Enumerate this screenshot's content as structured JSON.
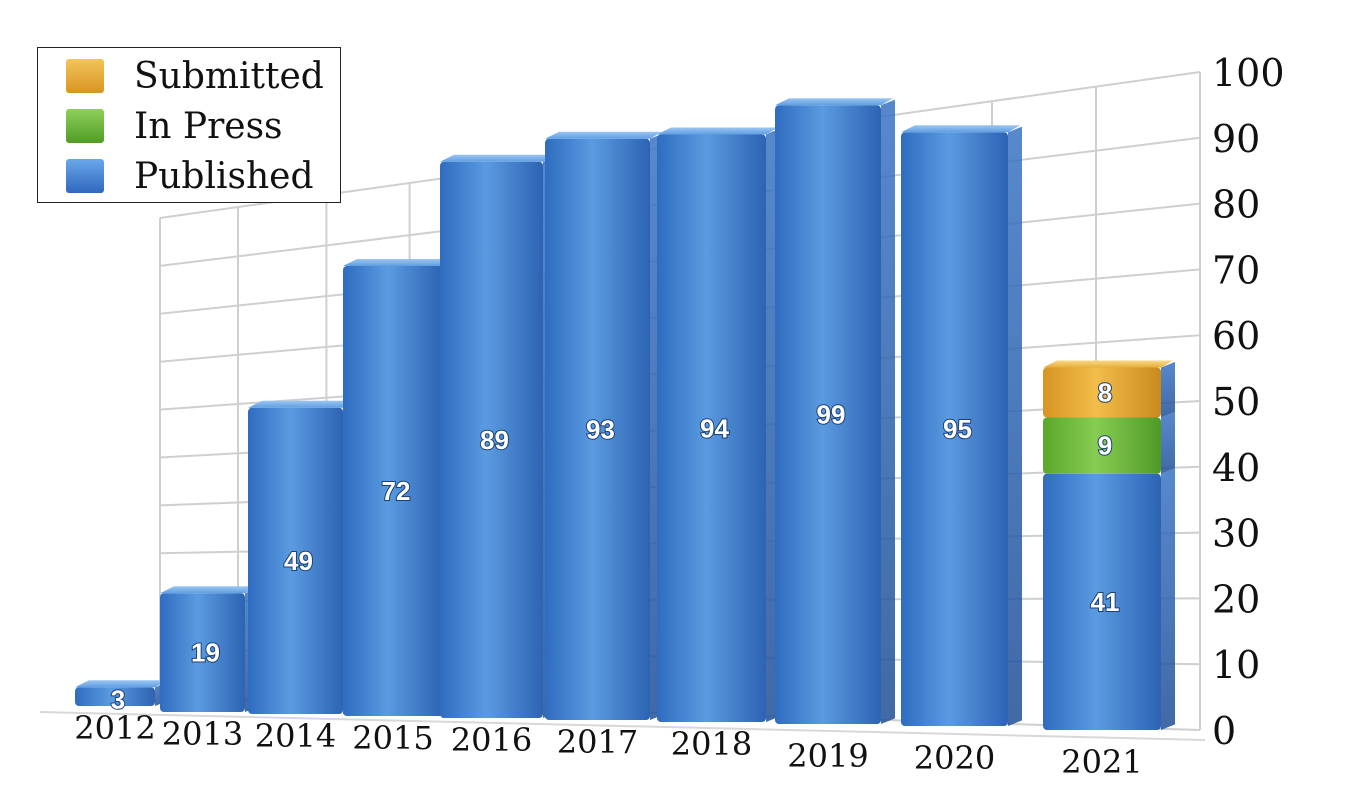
{
  "chart_data": {
    "type": "bar",
    "stacked": true,
    "categories": [
      "2012",
      "2013",
      "2014",
      "2015",
      "2016",
      "2017",
      "2018",
      "2019",
      "2020",
      "2021"
    ],
    "series": [
      {
        "name": "Published",
        "values": [
          3,
          19,
          49,
          72,
          89,
          93,
          94,
          99,
          95,
          41
        ],
        "color": "#3e7fd0"
      },
      {
        "name": "In Press",
        "values": [
          0,
          0,
          0,
          0,
          0,
          0,
          0,
          0,
          0,
          9
        ],
        "color": "#6fba3a"
      },
      {
        "name": "Submitted",
        "values": [
          0,
          0,
          0,
          0,
          0,
          0,
          0,
          0,
          0,
          8
        ],
        "color": "#e6a92c"
      }
    ],
    "y_ticks": [
      "0",
      "10",
      "20",
      "30",
      "40",
      "50",
      "60",
      "70",
      "80",
      "90",
      "100"
    ],
    "ylim": [
      0,
      100
    ],
    "title": "",
    "xlabel": "",
    "ylabel": "",
    "grid": true,
    "legend_position": "top-left",
    "legend": [
      "Submitted",
      "In Press",
      "Published"
    ]
  }
}
